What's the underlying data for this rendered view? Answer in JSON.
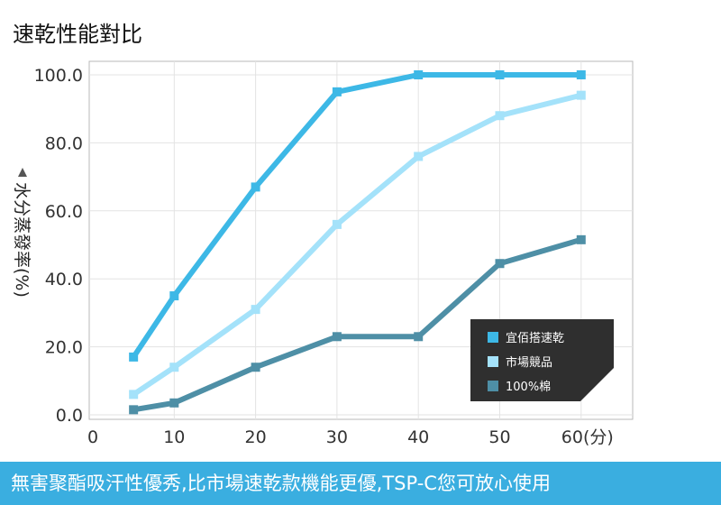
{
  "chart_data": {
    "type": "line",
    "title": "速乾性能對比",
    "ylabel": "水分蒸發率(%)",
    "x": [
      5,
      10,
      20,
      30,
      40,
      50,
      60
    ],
    "xlim": [
      0,
      65
    ],
    "ylim": [
      0,
      105
    ],
    "x_ticks": [
      0,
      10,
      20,
      30,
      40,
      50,
      60
    ],
    "x_tick_labels": [
      "0",
      "10",
      "20",
      "30",
      "40",
      "50",
      "60(分)"
    ],
    "y_ticks": [
      0,
      20,
      40,
      60,
      80,
      100
    ],
    "y_tick_labels": [
      "0.0",
      "20.0",
      "40.0",
      "60.0",
      "80.0",
      "100.0"
    ],
    "grid": true,
    "legend_position": "bottom-right",
    "series": [
      {
        "name": "宜佰搭速乾",
        "color": "#3db8e6",
        "values": [
          17,
          35,
          67,
          95,
          100,
          100,
          100
        ]
      },
      {
        "name": "市場競品",
        "color": "#a4e2fa",
        "values": [
          6,
          14,
          31,
          56,
          76,
          88,
          94
        ]
      },
      {
        "name": "100%棉",
        "color": "#4e8fa6",
        "values": [
          1.5,
          3.5,
          14,
          23,
          23,
          44.5,
          51.5
        ]
      }
    ]
  },
  "footer": {
    "text": "無害聚酯吸汗性優秀,比市場速乾款機能更優,TSP-C您可放心使用"
  }
}
